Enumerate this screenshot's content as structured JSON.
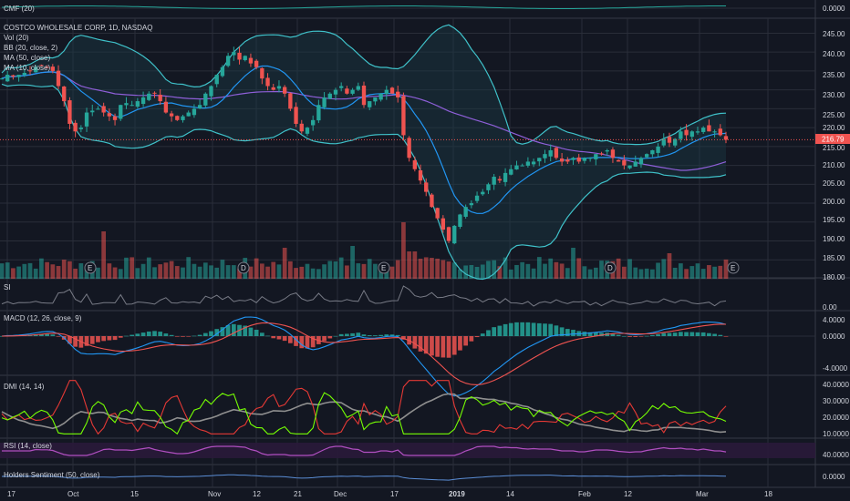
{
  "colors": {
    "background": "#131722",
    "grid": "#2a2e39",
    "separator": "#363a45",
    "up": "#26a69a",
    "down": "#ef5350",
    "bb": "#3fc1c9",
    "bb_fill": "#1b3a44",
    "ma50": "#8e5fd8",
    "ma10": "#2196f3",
    "price_tag": "#ef5350",
    "macd": "#2196f3",
    "signal": "#ef5350",
    "hist_up": "#26a69a",
    "hist_down": "#ef5350",
    "dmi_plus": "#76ff03",
    "dmi_minus": "#e53935",
    "adx": "#8f8f8f",
    "rsi": "#b04fc0",
    "rsi_band": "#2a1a3a",
    "sentiment": "#5b8ed6"
  },
  "chart_data": [
    {
      "type": "candlestick",
      "title": "COSTCO WHOLESALE CORP, 1D, NASDAQ",
      "indicators": [
        "Vol (20)",
        "BB (20, close, 2)",
        "MA (50, close)",
        "MA (10, close)"
      ],
      "y_ticks": [
        "245.00",
        "240.00",
        "235.00",
        "230.00",
        "225.00",
        "220.00",
        "215.00",
        "210.00",
        "205.00",
        "200.00",
        "195.00",
        "190.00",
        "185.00",
        "180.00"
      ],
      "ylim": [
        180,
        248
      ],
      "last_price": "216.79",
      "x_ticks": [
        "17",
        "Oct",
        "15",
        "Nov",
        "12",
        "21",
        "Dec",
        "17",
        "2019",
        "14",
        "Feb",
        "12",
        "Mar",
        "18"
      ],
      "earnings_markers": [
        "E",
        "D",
        "E",
        "D",
        "E"
      ],
      "close": [
        233,
        234,
        233.5,
        234,
        234.5,
        235,
        236,
        236.5,
        236,
        235,
        231,
        227,
        221,
        219,
        220,
        224,
        224.5,
        225,
        224,
        223,
        222,
        226,
        226.5,
        226,
        227,
        228,
        229,
        229,
        227,
        224,
        223,
        222,
        223,
        224,
        225,
        226,
        229,
        231,
        234,
        236,
        239,
        240,
        238,
        239,
        237,
        236,
        233,
        231,
        230,
        231,
        229,
        225,
        221,
        219,
        220,
        222,
        226,
        228,
        229,
        230,
        231,
        229,
        230,
        231,
        226,
        227,
        228,
        229,
        230,
        229,
        228,
        218,
        212,
        209,
        206,
        203,
        199,
        196,
        193,
        190,
        194,
        197,
        199,
        200,
        202,
        203,
        205,
        207,
        206,
        208,
        209,
        210,
        210,
        211,
        211,
        212,
        213,
        214,
        212,
        211,
        211,
        212,
        211,
        212,
        212,
        213,
        213,
        214,
        212,
        211,
        210,
        210,
        211,
        212,
        213,
        214,
        215,
        217,
        216,
        217,
        219,
        218,
        219,
        219,
        220,
        219,
        219,
        218,
        216.79
      ],
      "volume_scale": "relative"
    },
    {
      "type": "line",
      "title": "CMF (20)",
      "y_ticks": [
        "0.0000"
      ]
    },
    {
      "type": "line",
      "title": "SI",
      "y_ticks": [
        "0.00"
      ]
    },
    {
      "type": "line",
      "title": "MACD (12, 26, close, 9)",
      "y_ticks": [
        "4.0000",
        "0.0000",
        "-4.0000"
      ],
      "ylim": [
        -5,
        5
      ]
    },
    {
      "type": "line",
      "title": "DMI (14, 14)",
      "y_ticks": [
        "40.0000",
        "30.0000",
        "20.0000",
        "10.0000"
      ],
      "ylim": [
        8,
        44
      ]
    },
    {
      "type": "line",
      "title": "RSI (14, close)",
      "y_ticks": [
        "40.0000"
      ]
    },
    {
      "type": "line",
      "title": "Holders Sentiment (50, close)",
      "y_ticks": [
        "0.0000"
      ]
    }
  ]
}
